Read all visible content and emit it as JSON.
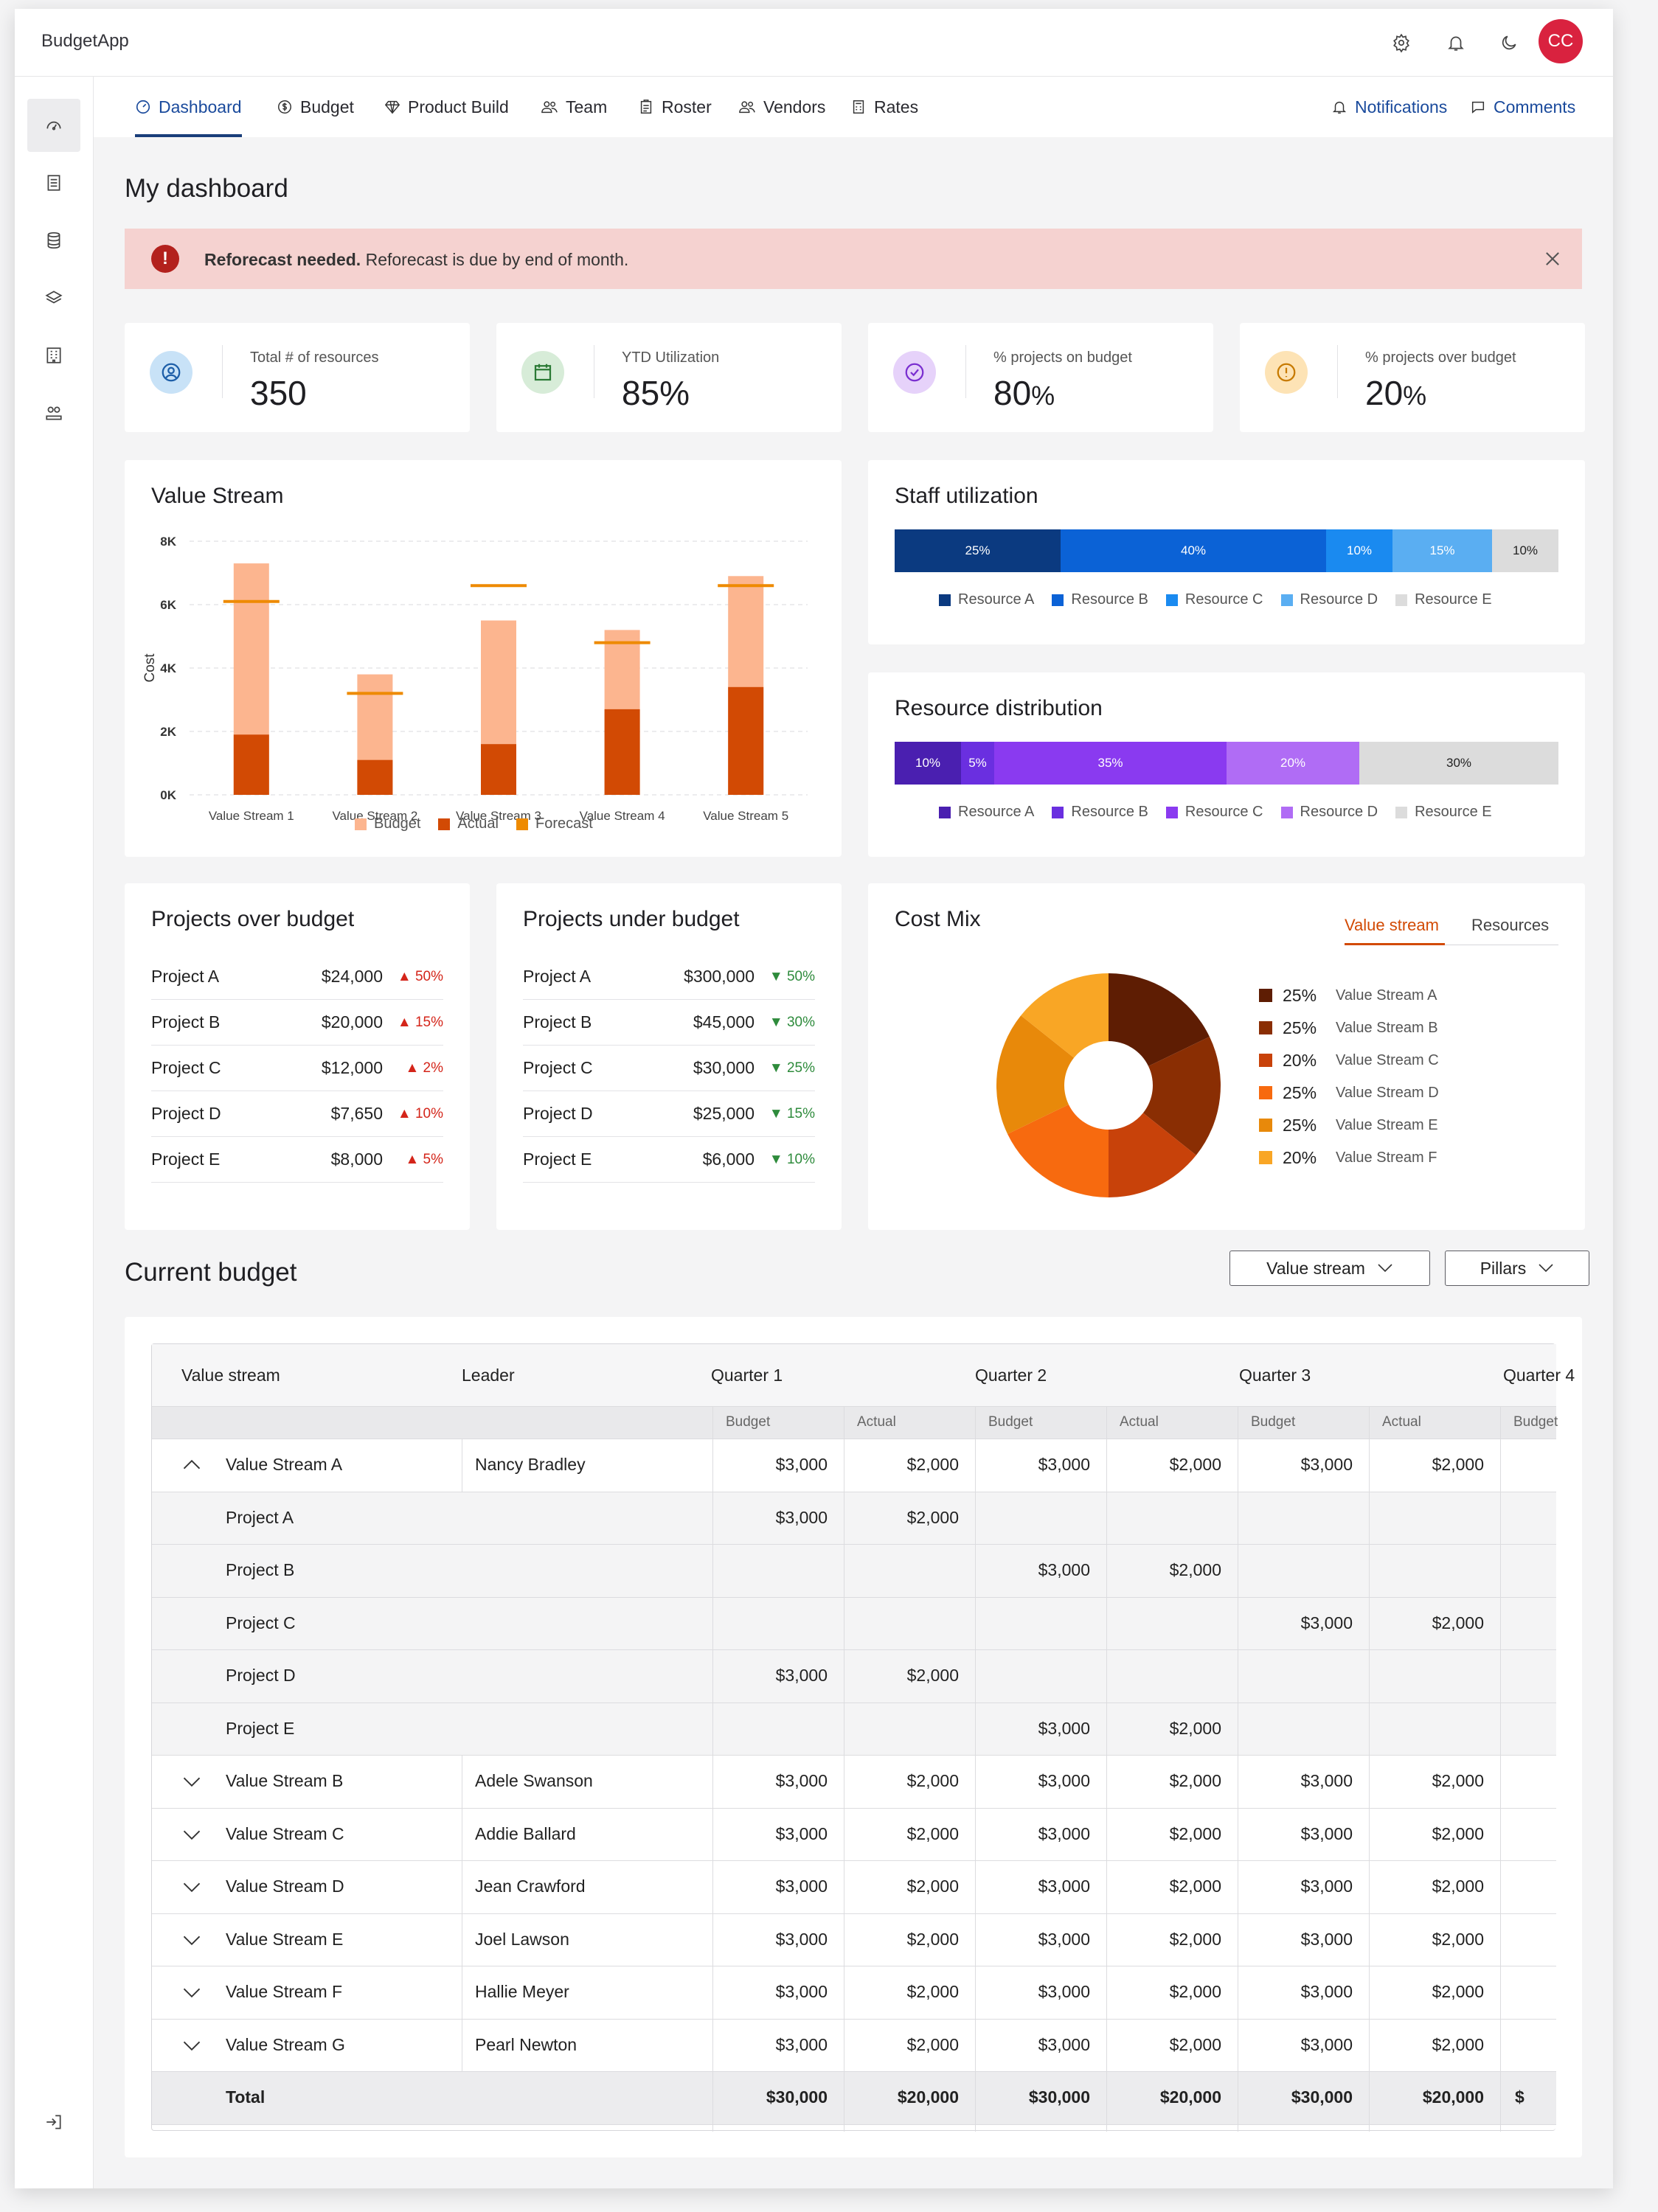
{
  "app": {
    "name": "BudgetApp",
    "avatar_initials": "CC"
  },
  "header_icons": [
    "gear-icon",
    "bell-icon",
    "moon-icon"
  ],
  "sidebar": {
    "items": [
      "dashboard-icon",
      "document-icon",
      "database-icon",
      "layers-icon",
      "building-icon",
      "team-icon"
    ],
    "bottom": "logout-icon"
  },
  "tabs": [
    {
      "label": "Dashboard",
      "icon": "gauge-icon",
      "active": true
    },
    {
      "label": "Budget",
      "icon": "dollar-icon"
    },
    {
      "label": "Product Build",
      "icon": "diamond-icon"
    },
    {
      "label": "Team",
      "icon": "people-icon"
    },
    {
      "label": "Roster",
      "icon": "clipboard-icon"
    },
    {
      "label": "Vendors",
      "icon": "people-icon"
    },
    {
      "label": "Rates",
      "icon": "calculator-icon"
    }
  ],
  "tab_links": {
    "notifications": "Notifications",
    "comments": "Comments"
  },
  "page_title": "My dashboard",
  "alert": {
    "title": "Reforecast needed.",
    "message": "Reforecast is due by end of month."
  },
  "kpis": [
    {
      "label": "Total # of resources",
      "value": "350",
      "suffix": "",
      "icon": "user-icon",
      "color": "#c8e2f7"
    },
    {
      "label": "YTD Utilization",
      "value": "85%",
      "suffix": "",
      "icon": "calendar-icon",
      "color": "#d7ecd8"
    },
    {
      "label": "% projects on budget",
      "value": "80",
      "suffix": "%",
      "icon": "check-circle-icon",
      "color": "#e6d2fa"
    },
    {
      "label": "% projects over budget",
      "value": "20",
      "suffix": "%",
      "icon": "warning-icon",
      "color": "#fde3b5"
    }
  ],
  "value_stream": {
    "title": "Value Stream",
    "legend": [
      "Budget",
      "Actual",
      "Forecast"
    ],
    "colors": {
      "budget": "#fcb58f",
      "actual": "#d24a04",
      "forecast": "#ee8a00"
    }
  },
  "chart_data": {
    "type": "bar",
    "title": "Value Stream",
    "ylabel": "Cost",
    "xlabel": "",
    "categories": [
      "Value Stream 1",
      "Value Stream 2",
      "Value Stream 3",
      "Value Stream 4",
      "Value Stream 5"
    ],
    "yticks": [
      "0K",
      "2K",
      "4K",
      "6K",
      "8K"
    ],
    "ylim": [
      0,
      8000
    ],
    "series": [
      {
        "name": "Budget",
        "values": [
          7300,
          3800,
          5500,
          5200,
          6900
        ]
      },
      {
        "name": "Actual",
        "values": [
          1900,
          1100,
          1600,
          2700,
          3400
        ]
      },
      {
        "name": "Forecast",
        "values": [
          6100,
          3200,
          6600,
          4800,
          6600
        ]
      }
    ],
    "grid": true,
    "legend_position": "bottom"
  },
  "staff_utilization": {
    "title": "Staff utilization",
    "segments": [
      {
        "label": "25%",
        "value": 25,
        "color": "#0b3a80"
      },
      {
        "label": "40%",
        "value": 40,
        "color": "#0b62d6"
      },
      {
        "label": "10%",
        "value": 10,
        "color": "#1a8af0"
      },
      {
        "label": "15%",
        "value": 15,
        "color": "#5aaef2"
      },
      {
        "label": "10%",
        "value": 10,
        "color": "#dcdcdc"
      }
    ],
    "legend": [
      "Resource A",
      "Resource B",
      "Resource C",
      "Resource D",
      "Resource E"
    ]
  },
  "resource_distribution": {
    "title": "Resource distribution",
    "segments": [
      {
        "label": "10%",
        "value": 10,
        "color": "#4a1fb0"
      },
      {
        "label": "5%",
        "value": 5,
        "color": "#6a2fe0"
      },
      {
        "label": "35%",
        "value": 35,
        "color": "#8a3af0"
      },
      {
        "label": "20%",
        "value": 20,
        "color": "#b06cf5"
      },
      {
        "label": "30%",
        "value": 30,
        "color": "#dcdcdc"
      }
    ],
    "legend": [
      "Resource A",
      "Resource B",
      "Resource C",
      "Resource D",
      "Resource E"
    ]
  },
  "over_budget": {
    "title": "Projects over budget",
    "rows": [
      {
        "name": "Project A",
        "amount": "$24,000",
        "pct": "50%"
      },
      {
        "name": "Project B",
        "amount": "$20,000",
        "pct": "15%"
      },
      {
        "name": "Project C",
        "amount": "$12,000",
        "pct": "2%"
      },
      {
        "name": "Project D",
        "amount": "$7,650",
        "pct": "10%"
      },
      {
        "name": "Project E",
        "amount": "$8,000",
        "pct": "5%"
      }
    ]
  },
  "under_budget": {
    "title": "Projects under budget",
    "rows": [
      {
        "name": "Project A",
        "amount": "$300,000",
        "pct": "50%"
      },
      {
        "name": "Project B",
        "amount": "$45,000",
        "pct": "30%"
      },
      {
        "name": "Project C",
        "amount": "$30,000",
        "pct": "25%"
      },
      {
        "name": "Project D",
        "amount": "$25,000",
        "pct": "15%"
      },
      {
        "name": "Project E",
        "amount": "$6,000",
        "pct": "10%"
      }
    ]
  },
  "cost_mix": {
    "title": "Cost Mix",
    "tabs": [
      "Value stream",
      "Resources"
    ],
    "slices": [
      {
        "pct": "25%",
        "label": "Value Stream A",
        "value": 25,
        "color": "#5e1d03"
      },
      {
        "pct": "25%",
        "label": "Value Stream B",
        "value": 25,
        "color": "#8a2e03"
      },
      {
        "pct": "20%",
        "label": "Value Stream C",
        "value": 20,
        "color": "#c8420a"
      },
      {
        "pct": "25%",
        "label": "Value Stream D",
        "value": 25,
        "color": "#f76a0f"
      },
      {
        "pct": "25%",
        "label": "Value Stream E",
        "value": 25,
        "color": "#e8890a"
      },
      {
        "pct": "20%",
        "label": "Value Stream F",
        "value": 20,
        "color": "#f9a625"
      }
    ]
  },
  "current_budget": {
    "title": "Current budget",
    "filters": [
      "Value stream",
      "Pillars"
    ],
    "columns": {
      "value_stream": "Value stream",
      "leader": "Leader",
      "quarters": [
        "Quarter 1",
        "Quarter 2",
        "Quarter 3",
        "Quarter 4"
      ],
      "budget": "Budget",
      "actual": "Actual"
    },
    "rows": [
      {
        "name": "Value Stream A",
        "leader": "Nancy Bradley",
        "expanded": true,
        "cells": [
          "$3,000",
          "$2,000",
          "$3,000",
          "$2,000",
          "$3,000",
          "$2,000"
        ]
      },
      {
        "name": "Project A",
        "child": true,
        "cells": [
          "$3,000",
          "$2,000",
          "",
          "",
          "",
          ""
        ]
      },
      {
        "name": "Project B",
        "child": true,
        "cells": [
          "",
          "",
          "$3,000",
          "$2,000",
          "",
          ""
        ]
      },
      {
        "name": "Project C",
        "child": true,
        "cells": [
          "",
          "",
          "",
          "",
          "$3,000",
          "$2,000"
        ]
      },
      {
        "name": "Project D",
        "child": true,
        "cells": [
          "$3,000",
          "$2,000",
          "",
          "",
          "",
          ""
        ]
      },
      {
        "name": "Project E",
        "child": true,
        "cells": [
          "",
          "",
          "$3,000",
          "$2,000",
          "",
          ""
        ]
      },
      {
        "name": "Value Stream B",
        "leader": "Adele Swanson",
        "cells": [
          "$3,000",
          "$2,000",
          "$3,000",
          "$2,000",
          "$3,000",
          "$2,000"
        ]
      },
      {
        "name": "Value Stream C",
        "leader": "Addie Ballard",
        "cells": [
          "$3,000",
          "$2,000",
          "$3,000",
          "$2,000",
          "$3,000",
          "$2,000"
        ]
      },
      {
        "name": "Value Stream D",
        "leader": "Jean Crawford",
        "cells": [
          "$3,000",
          "$2,000",
          "$3,000",
          "$2,000",
          "$3,000",
          "$2,000"
        ]
      },
      {
        "name": "Value Stream E",
        "leader": "Joel Lawson",
        "cells": [
          "$3,000",
          "$2,000",
          "$3,000",
          "$2,000",
          "$3,000",
          "$2,000"
        ]
      },
      {
        "name": "Value Stream F",
        "leader": "Hallie Meyer",
        "cells": [
          "$3,000",
          "$2,000",
          "$3,000",
          "$2,000",
          "$3,000",
          "$2,000"
        ]
      },
      {
        "name": "Value Stream G",
        "leader": "Pearl Newton",
        "cells": [
          "$3,000",
          "$2,000",
          "$3,000",
          "$2,000",
          "$3,000",
          "$2,000"
        ]
      }
    ],
    "total": {
      "label": "Total",
      "cells": [
        "$30,000",
        "$20,000",
        "$30,000",
        "$20,000",
        "$30,000",
        "$20,000"
      ]
    }
  }
}
